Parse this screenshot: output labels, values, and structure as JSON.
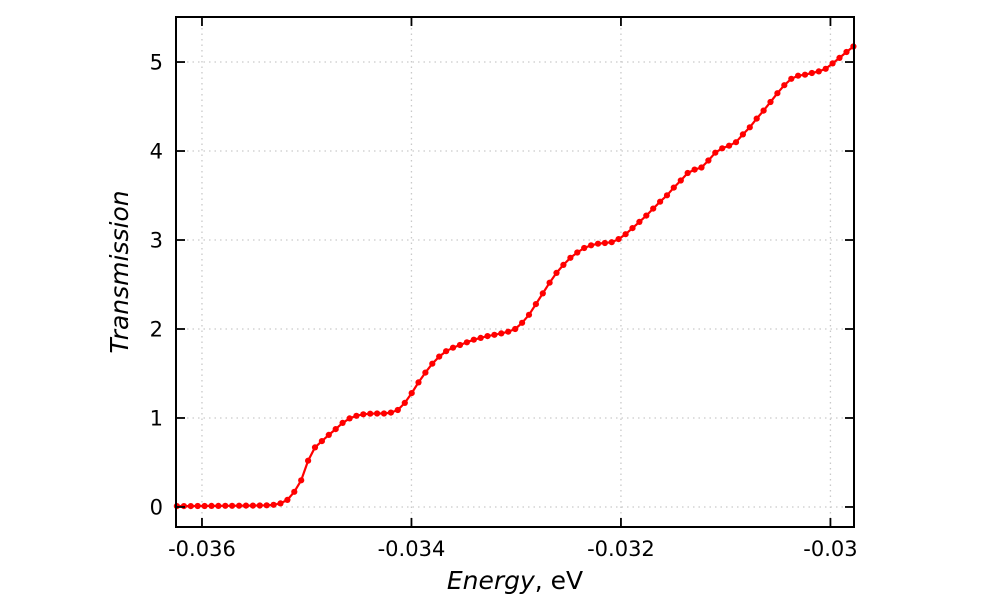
{
  "page": {
    "background": "#ffffff"
  },
  "chart_data": {
    "type": "line",
    "title": "",
    "ylabel": "Transmission",
    "xlabel_italic": "Energy",
    "xlabel_unit": ", eV",
    "xlim": [
      -0.036248,
      -0.029775
    ],
    "ylim": [
      -0.225,
      5.506
    ],
    "grid": "dotted",
    "legend": "none",
    "colors": {
      "series": "#ff0000",
      "grid": "#c9c9c9",
      "axis": "#000000",
      "background": "#ffffff"
    },
    "x_ticks": [
      {
        "value": -0.036,
        "label": "-0.036"
      },
      {
        "value": -0.034,
        "label": "-0.034"
      },
      {
        "value": -0.032,
        "label": "-0.032"
      },
      {
        "value": -0.03,
        "label": "-0.03"
      }
    ],
    "y_ticks": [
      {
        "value": 0,
        "label": "0"
      },
      {
        "value": 1,
        "label": "1"
      },
      {
        "value": 2,
        "label": "2"
      },
      {
        "value": 3,
        "label": "3"
      },
      {
        "value": 4,
        "label": "4"
      },
      {
        "value": 5,
        "label": "5"
      }
    ],
    "series": [
      {
        "name": "transmission-vs-energy",
        "style": "linespoints",
        "marker": "filled-circle",
        "color": "#ff0000",
        "x": [
          -0.036239,
          -0.036173,
          -0.036107,
          -0.036041,
          -0.035975,
          -0.035909,
          -0.035843,
          -0.035777,
          -0.035712,
          -0.035646,
          -0.03558,
          -0.035514,
          -0.035448,
          -0.035382,
          -0.035316,
          -0.03525,
          -0.035184,
          -0.035119,
          -0.035053,
          -0.034987,
          -0.034921,
          -0.034855,
          -0.034789,
          -0.034723,
          -0.034657,
          -0.034591,
          -0.034526,
          -0.03446,
          -0.034394,
          -0.034328,
          -0.034262,
          -0.034196,
          -0.03413,
          -0.034064,
          -0.033998,
          -0.033933,
          -0.033867,
          -0.033801,
          -0.033735,
          -0.033669,
          -0.033603,
          -0.033537,
          -0.033471,
          -0.033405,
          -0.033339,
          -0.033274,
          -0.033208,
          -0.033142,
          -0.033076,
          -0.03301,
          -0.032944,
          -0.032878,
          -0.032812,
          -0.032746,
          -0.032681,
          -0.032615,
          -0.032549,
          -0.032483,
          -0.032417,
          -0.032351,
          -0.032285,
          -0.032219,
          -0.032153,
          -0.032088,
          -0.032022,
          -0.031956,
          -0.03189,
          -0.031824,
          -0.031758,
          -0.031692,
          -0.031626,
          -0.03156,
          -0.031495,
          -0.031429,
          -0.031363,
          -0.031297,
          -0.031231,
          -0.031165,
          -0.031099,
          -0.031033,
          -0.030967,
          -0.030902,
          -0.030836,
          -0.03077,
          -0.030704,
          -0.030638,
          -0.030572,
          -0.030506,
          -0.03044,
          -0.030374,
          -0.030309,
          -0.030243,
          -0.030177,
          -0.030111,
          -0.030045,
          -0.029979,
          -0.029913,
          -0.029847,
          -0.029781
        ],
        "y": [
          0.01,
          0.01,
          0.01,
          0.011,
          0.011,
          0.012,
          0.012,
          0.013,
          0.013,
          0.014,
          0.015,
          0.016,
          0.017,
          0.019,
          0.025,
          0.04,
          0.08,
          0.17,
          0.3,
          0.52,
          0.67,
          0.74,
          0.81,
          0.875,
          0.945,
          0.995,
          1.025,
          1.042,
          1.048,
          1.05,
          1.05,
          1.06,
          1.09,
          1.17,
          1.28,
          1.4,
          1.51,
          1.61,
          1.69,
          1.75,
          1.79,
          1.82,
          1.85,
          1.88,
          1.9,
          1.92,
          1.935,
          1.95,
          1.97,
          2.0,
          2.07,
          2.16,
          2.28,
          2.4,
          2.52,
          2.63,
          2.72,
          2.8,
          2.86,
          2.91,
          2.94,
          2.958,
          2.966,
          2.975,
          3.01,
          3.065,
          3.134,
          3.203,
          3.274,
          3.353,
          3.43,
          3.502,
          3.589,
          3.669,
          3.753,
          3.791,
          3.815,
          3.894,
          3.981,
          4.03,
          4.06,
          4.099,
          4.187,
          4.266,
          4.364,
          4.454,
          4.551,
          4.65,
          4.74,
          4.811,
          4.846,
          4.858,
          4.877,
          4.895,
          4.924,
          4.985,
          5.046,
          5.113,
          5.175
        ]
      }
    ]
  }
}
